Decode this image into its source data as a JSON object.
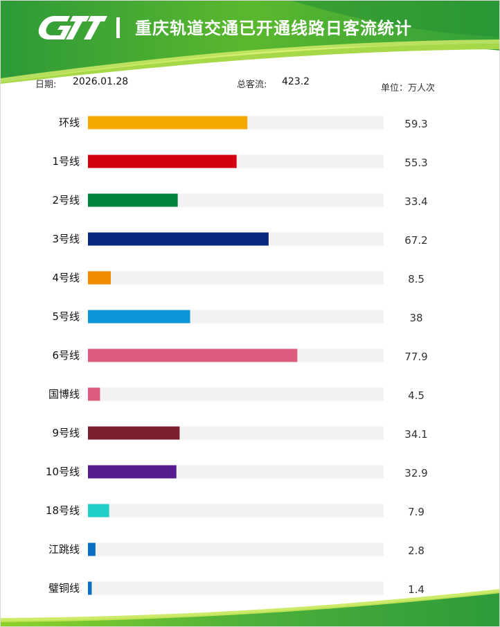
{
  "header": {
    "title": "重庆轨道交通已开通线路日客流统计"
  },
  "meta": {
    "date_label": "日期:",
    "date_value": "2026.01.28",
    "total_label": "总客流:",
    "total_value": "423.2",
    "unit": "单位：万人次"
  },
  "colors": {
    "banner_green_dark": "#2e9a3a",
    "banner_green_light": "#8fd12a",
    "track": "#f2f2f2"
  },
  "chart_data": {
    "type": "bar",
    "orientation": "horizontal",
    "xlim": [
      0,
      110
    ],
    "grid": false,
    "categories": [
      "环线",
      "1号线",
      "2号线",
      "3号线",
      "4号线",
      "5号线",
      "6号线",
      "国博线",
      "9号线",
      "10号线",
      "18号线",
      "江跳线",
      "璧铜线"
    ],
    "values": [
      59.3,
      55.3,
      33.4,
      67.2,
      8.5,
      38,
      77.9,
      4.5,
      34.1,
      32.9,
      7.9,
      2.8,
      1.4
    ],
    "value_labels": [
      "59.3",
      "55.3",
      "33.4",
      "67.2",
      "8.5",
      "38",
      "77.9",
      "4.5",
      "34.1",
      "32.9",
      "7.9",
      "2.8",
      "1.4"
    ],
    "bar_colors": [
      "#f5a800",
      "#d40012",
      "#00843d",
      "#06287e",
      "#ef8c00",
      "#0a96d9",
      "#dd5b7d",
      "#dd5b7d",
      "#7b1f2e",
      "#561b8c",
      "#20d0c6",
      "#0b70c4",
      "#0b70c4"
    ]
  }
}
